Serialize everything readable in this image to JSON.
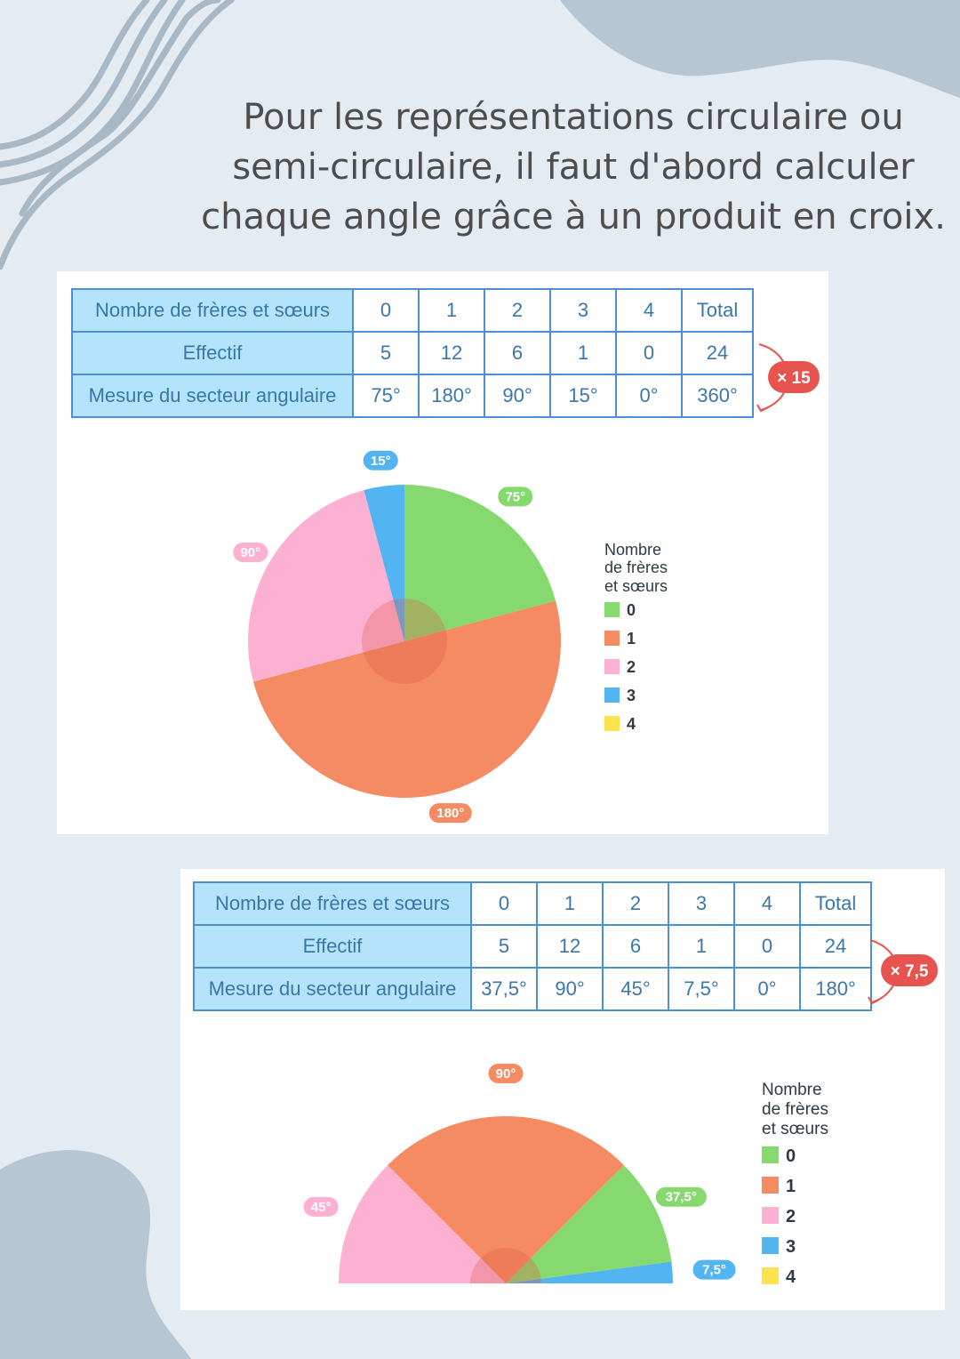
{
  "heading": "Pour les représentations circulaire ou semi-circulaire, il faut d'abord calculer chaque angle grâce à un produit en croix.",
  "colors": {
    "background": "#e4ebf1",
    "blob": "#b6c6d2",
    "series": [
      "#86d96e",
      "#f48b62",
      "#fcb0d2",
      "#52b4f0",
      "#fde24f"
    ],
    "table_head": "#b3e4fb",
    "table_border": "#4d8fcf",
    "multiplier": "#e7534e"
  },
  "icons": [
    "wavy-lines-decoration",
    "blob-decoration",
    "curved-arrow-icon"
  ],
  "chart_data": [
    {
      "type": "table",
      "row_labels": [
        "Nombre de frères et sœurs",
        "Effectif",
        "Mesure du secteur angulaire"
      ],
      "columns": [
        "0",
        "1",
        "2",
        "3",
        "4",
        "Total"
      ],
      "rows": [
        [
          "5",
          "12",
          "6",
          "1",
          "0",
          "24"
        ],
        [
          "75°",
          "180°",
          "90°",
          "15°",
          "0°",
          "360°"
        ]
      ],
      "multiplier": "× 15"
    },
    {
      "type": "pie",
      "total_degrees": 360,
      "categories": [
        "0",
        "1",
        "2",
        "3",
        "4"
      ],
      "values": [
        75,
        180,
        90,
        15,
        0
      ],
      "labels": [
        "75°",
        "180°",
        "90°",
        "15°"
      ],
      "legend": {
        "title": [
          "Nombre",
          "de frères",
          "et sœurs"
        ],
        "entries": [
          "0",
          "1",
          "2",
          "3",
          "4"
        ],
        "placement": "right"
      }
    },
    {
      "type": "table",
      "row_labels": [
        "Nombre de frères et sœurs",
        "Effectif",
        "Mesure du secteur angulaire"
      ],
      "columns": [
        "0",
        "1",
        "2",
        "3",
        "4",
        "Total"
      ],
      "rows": [
        [
          "5",
          "12",
          "6",
          "1",
          "0",
          "24"
        ],
        [
          "37,5°",
          "90°",
          "45°",
          "7,5°",
          "0°",
          "180°"
        ]
      ],
      "multiplier": "× 7,5"
    },
    {
      "type": "pie",
      "total_degrees": 180,
      "categories": [
        "0",
        "1",
        "2",
        "3",
        "4"
      ],
      "values": [
        37.5,
        90,
        45,
        7.5,
        0
      ],
      "labels": [
        "37,5°",
        "90°",
        "45°",
        "7,5°"
      ],
      "legend": {
        "title": [
          "Nombre",
          "de frères",
          "et sœurs"
        ],
        "entries": [
          "0",
          "1",
          "2",
          "3",
          "4"
        ],
        "placement": "right"
      }
    }
  ]
}
